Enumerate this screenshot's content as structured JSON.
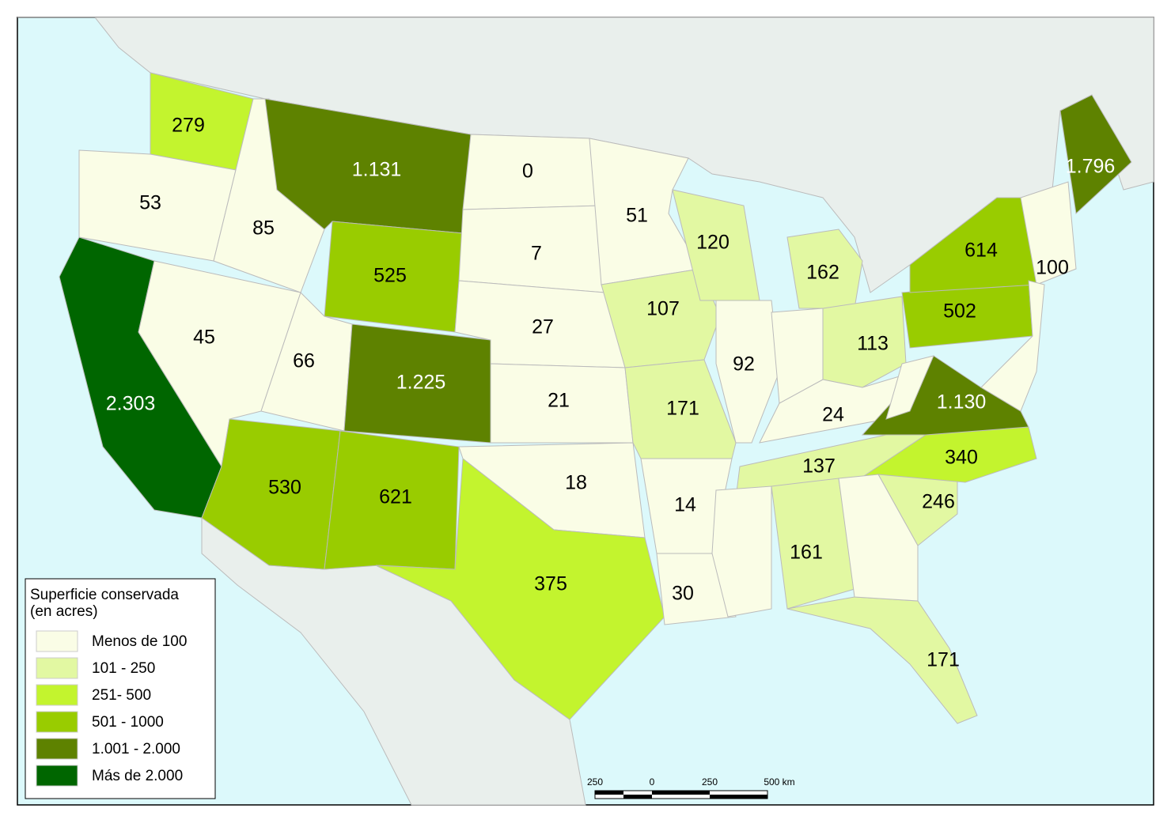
{
  "legend": {
    "title": [
      "Superficie conservada",
      "(en acres)"
    ],
    "items": [
      {
        "label": "Menos de 100",
        "color": "#fafde6"
      },
      {
        "label": "101 - 250",
        "color": "#e2f8a2"
      },
      {
        "label": "251- 500",
        "color": "#c3f42e"
      },
      {
        "label": "501 - 1000",
        "color": "#99cc00"
      },
      {
        "label": "1.001 - 2.000",
        "color": "#5e8200"
      },
      {
        "label": "Más de 2.000",
        "color": "#006600"
      }
    ]
  },
  "states": [
    {
      "label": "279",
      "class": 2
    },
    {
      "label": "53",
      "class": 0
    },
    {
      "label": "2.303",
      "class": 5
    },
    {
      "label": "85",
      "class": 0
    },
    {
      "label": "45",
      "class": 0
    },
    {
      "label": "1.131",
      "class": 4
    },
    {
      "label": "525",
      "class": 3
    },
    {
      "label": "66",
      "class": 0
    },
    {
      "label": "1.225",
      "class": 4
    },
    {
      "label": "530",
      "class": 3
    },
    {
      "label": "621",
      "class": 3
    },
    {
      "label": "0",
      "class": 0
    },
    {
      "label": "7",
      "class": 0
    },
    {
      "label": "27",
      "class": 0
    },
    {
      "label": "21",
      "class": 0
    },
    {
      "label": "18",
      "class": 0
    },
    {
      "label": "375",
      "class": 2
    },
    {
      "label": "51",
      "class": 0
    },
    {
      "label": "107",
      "class": 1
    },
    {
      "label": "171",
      "class": 1
    },
    {
      "label": "14",
      "class": 0
    },
    {
      "label": "30",
      "class": 0
    },
    {
      "label": "120",
      "class": 1
    },
    {
      "label": "92",
      "class": 0
    },
    {
      "label": "162",
      "class": 1
    },
    {
      "label": "113",
      "class": 1
    },
    {
      "label": "24",
      "class": 0
    },
    {
      "label": "137",
      "class": 1
    },
    {
      "label": "161",
      "class": 1
    },
    {
      "label": "171",
      "class": 1
    },
    {
      "label": "246",
      "class": 1
    },
    {
      "label": "340",
      "class": 2
    },
    {
      "label": "1.130",
      "class": 4
    },
    {
      "label": "502",
      "class": 3
    },
    {
      "label": "614",
      "class": 3
    },
    {
      "label": "100",
      "class": 0
    },
    {
      "label": "1.796",
      "class": 4
    },
    {
      "label": null,
      "class": 0
    },
    {
      "label": null,
      "class": 0
    },
    {
      "label": null,
      "class": 0
    },
    {
      "label": null,
      "class": 0
    },
    {
      "label": null,
      "class": 0
    }
  ],
  "scale": [
    "250",
    "0",
    "250",
    "500 km"
  ]
}
